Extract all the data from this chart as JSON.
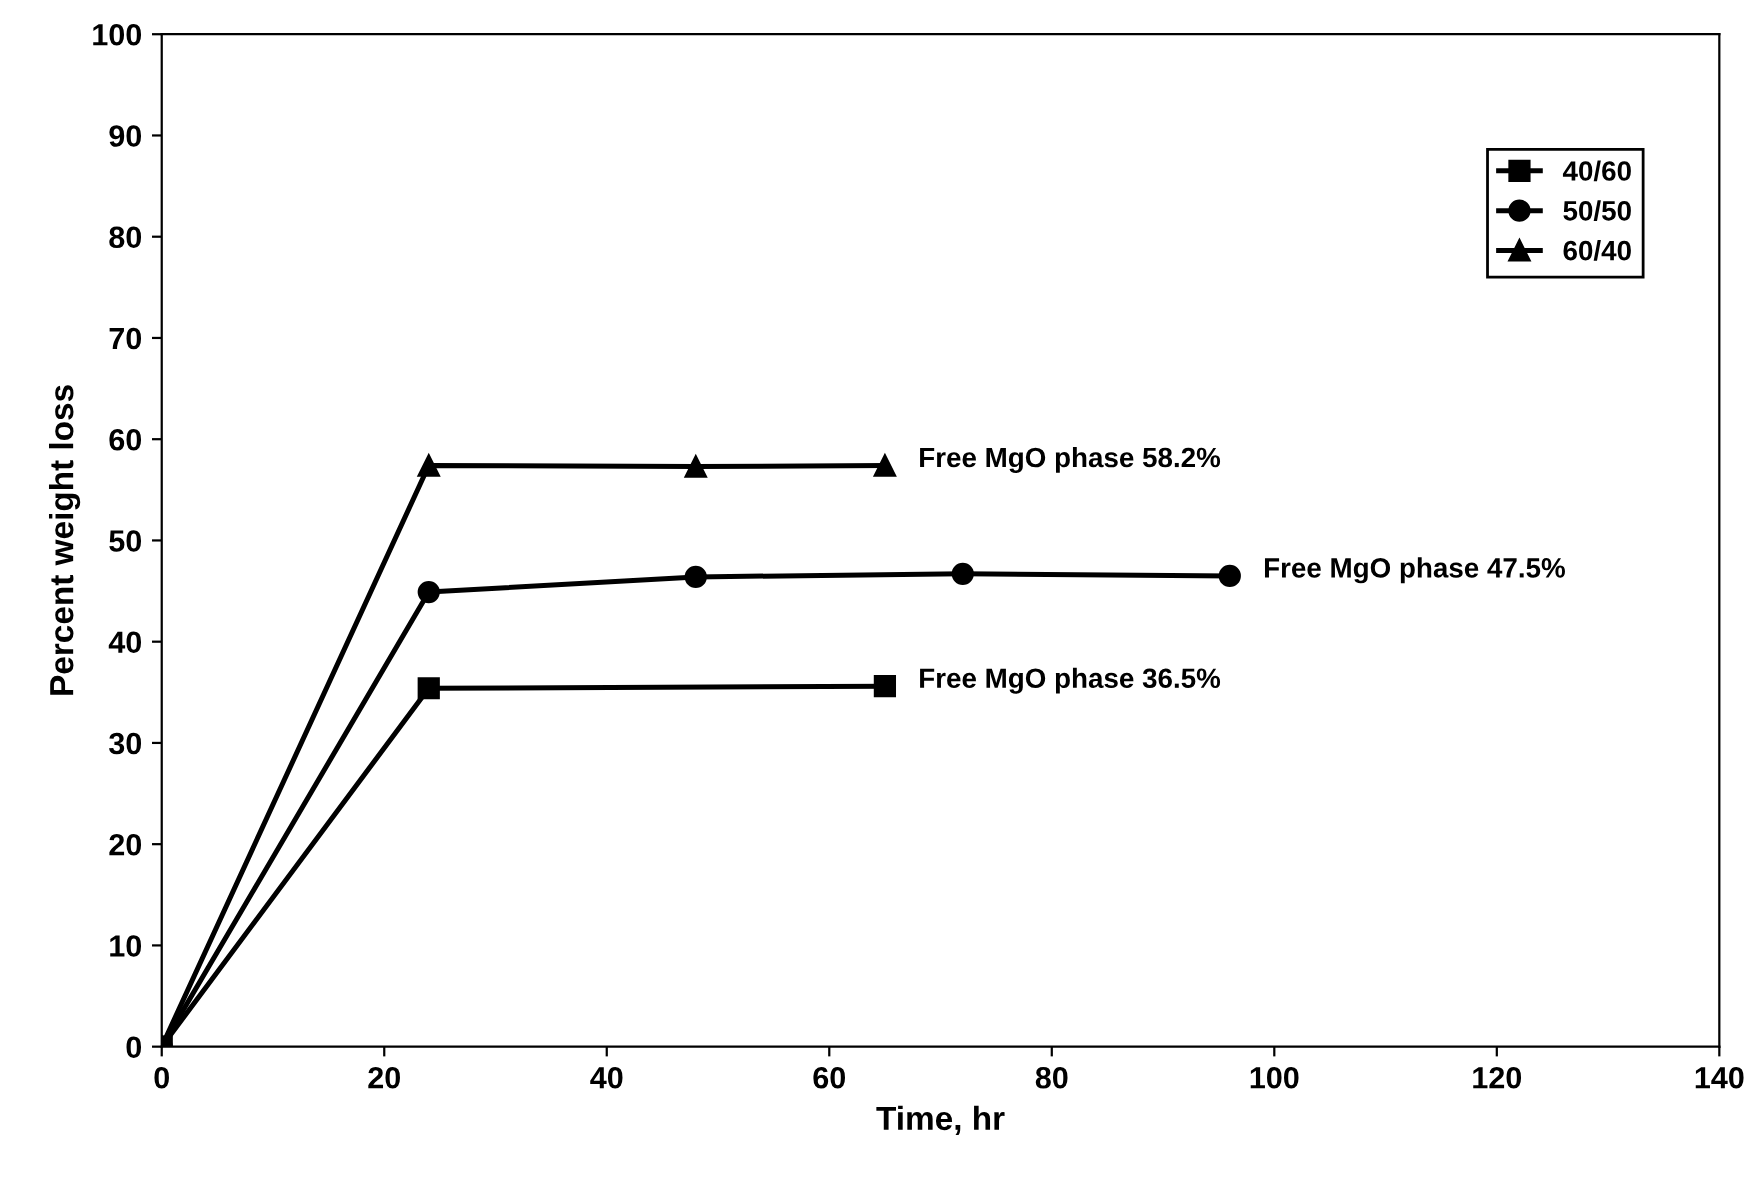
{
  "chart_data": {
    "type": "line",
    "xlabel": "Time, hr",
    "ylabel": "Percent weight loss",
    "xlim": [
      0,
      140
    ],
    "xticks": [
      0,
      20,
      40,
      60,
      80,
      100,
      120,
      140
    ],
    "ylim": [
      0,
      100
    ],
    "yticks": [
      0,
      10,
      20,
      30,
      40,
      50,
      60,
      70,
      80,
      90,
      100
    ],
    "grid": false,
    "legend": "top right",
    "series": [
      {
        "name": "40/60",
        "color": "#000000",
        "marker": "square",
        "x": [
          0,
          24,
          65
        ],
        "values": [
          0,
          35.4,
          35.6
        ]
      },
      {
        "name": "50/50",
        "color": "#000000",
        "marker": "circle",
        "x": [
          0,
          24,
          48,
          72,
          96
        ],
        "values": [
          0,
          44.9,
          46.4,
          46.7,
          46.5
        ]
      },
      {
        "name": "60/40",
        "color": "#000000",
        "marker": "triangle",
        "x": [
          0,
          24,
          48,
          65
        ],
        "values": [
          0,
          57.4,
          57.3,
          57.4
        ]
      }
    ],
    "annotations": [
      "Free MgO phase 58.2%",
      "Free MgO phase 47.5%",
      "Free MgO phase 36.5%"
    ]
  }
}
